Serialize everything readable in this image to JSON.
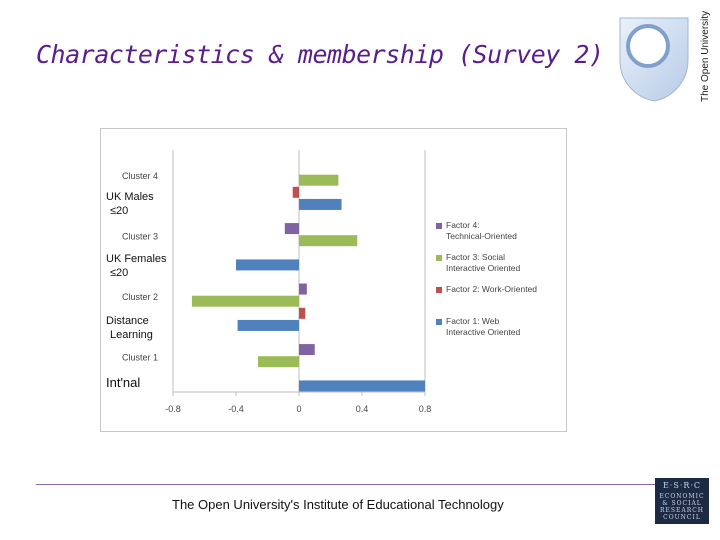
{
  "title": "Characteristics & membership (Survey 2)",
  "brand": {
    "ou_text": "The Open University",
    "esrc_lines": [
      "E·S·R·C",
      "ECONOMIC",
      "& SOCIAL",
      "RESEARCH",
      "COUNCIL"
    ]
  },
  "footer": "The Open University's Institute of Educational Technology",
  "overlay_labels": {
    "uk_males": [
      "UK Males",
      "≤20"
    ],
    "uk_females": [
      "UK Females",
      "≤20"
    ],
    "distance": [
      "Distance",
      "Learning"
    ],
    "intnal": "Int'nal"
  },
  "chart_data": {
    "type": "bar",
    "orientation": "horizontal",
    "categories": [
      "Cluster 4",
      "Cluster 3",
      "Cluster 2",
      "Cluster 1"
    ],
    "series": [
      {
        "name": "Factor 4: Technical-Oriented",
        "color": "#8064a2",
        "values": [
          0.0,
          -0.09,
          0.05,
          0.1
        ]
      },
      {
        "name": "Factor 3: Social Interactive Oriented",
        "color": "#9bbb59",
        "values": [
          0.25,
          0.37,
          -0.68,
          -0.26
        ]
      },
      {
        "name": "Factor 2: Work-Oriented",
        "color": "#c0504d",
        "values": [
          -0.04,
          0.0,
          0.04,
          0.0
        ]
      },
      {
        "name": "Factor 1: Web Interactive Oriented",
        "color": "#4f81bd",
        "values": [
          0.27,
          -0.4,
          -0.39,
          0.8
        ]
      }
    ],
    "xticks": [
      "-0.8",
      "-0.4",
      "0",
      "0.4",
      "0.8"
    ],
    "xlim": [
      -0.8,
      0.8
    ],
    "legend_position": "right",
    "grid": false
  }
}
